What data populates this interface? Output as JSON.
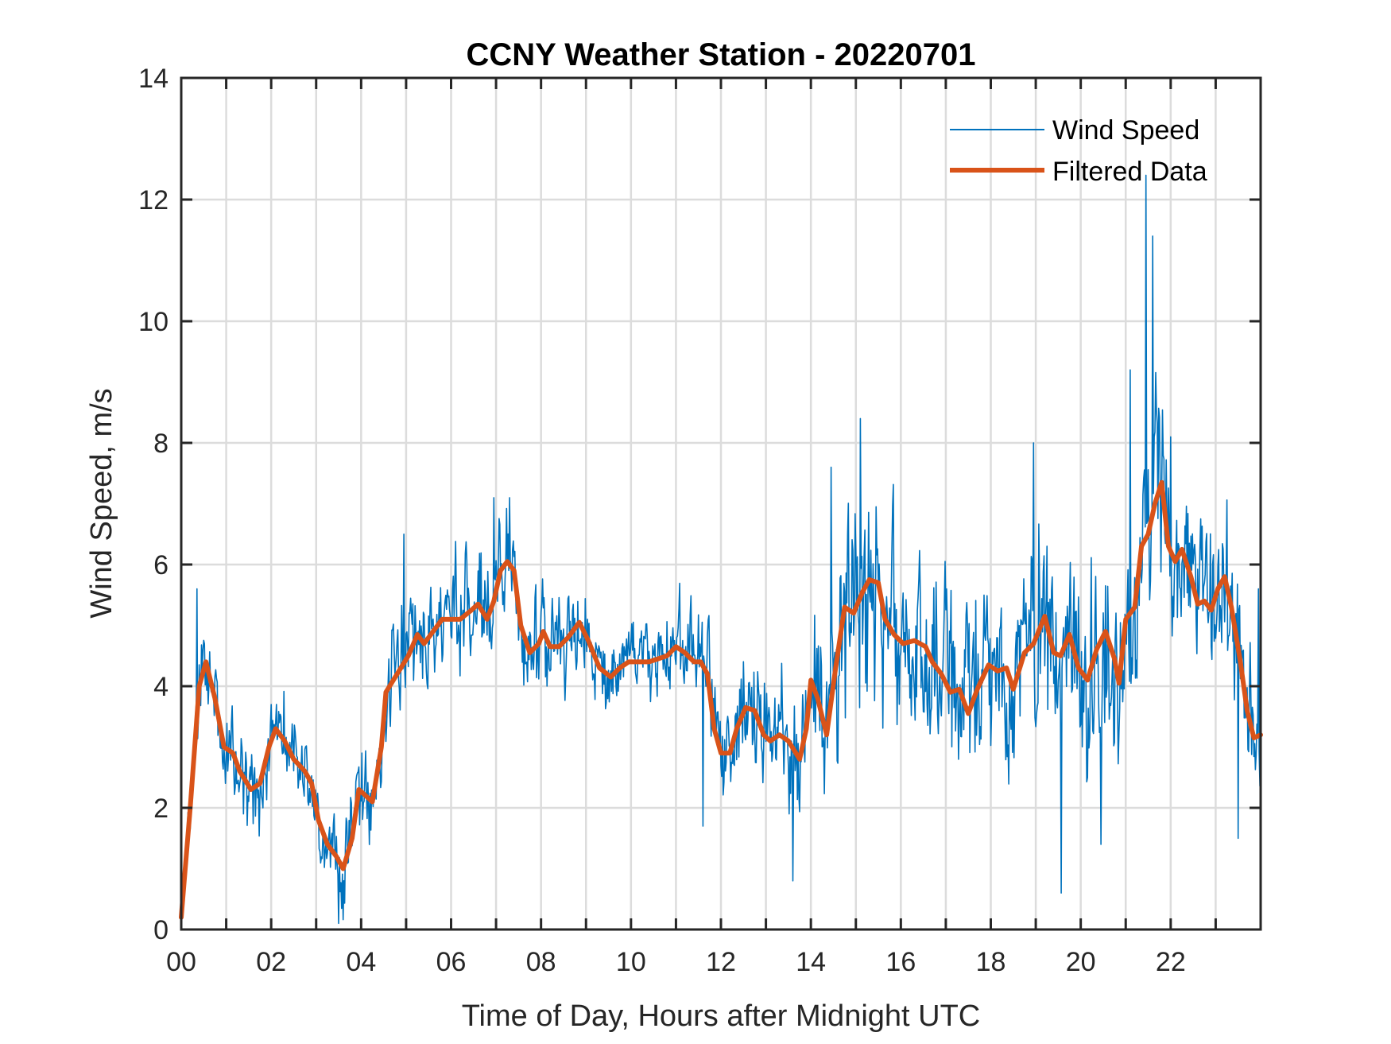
{
  "chart_data": {
    "type": "line",
    "title": "CCNY Weather Station - 20220701",
    "xlabel": "Time of Day, Hours after Midnight UTC",
    "ylabel": "Wind Speed, m/s",
    "xlim": [
      0,
      24
    ],
    "ylim": [
      0,
      14
    ],
    "x_ticks": [
      0,
      2,
      4,
      6,
      8,
      10,
      12,
      14,
      16,
      18,
      20,
      22
    ],
    "x_tick_labels": [
      "00",
      "02",
      "04",
      "06",
      "08",
      "10",
      "12",
      "14",
      "16",
      "18",
      "20",
      "22"
    ],
    "x_minor_grid_step_hours": 1,
    "y_ticks": [
      0,
      2,
      4,
      6,
      8,
      10,
      12,
      14
    ],
    "y_tick_labels": [
      "0",
      "2",
      "4",
      "6",
      "8",
      "10",
      "12",
      "14"
    ],
    "grid": true,
    "box": true,
    "legend": {
      "placement": "top-right",
      "entries": [
        "Wind Speed",
        "Filtered Data"
      ]
    },
    "series": [
      {
        "name": "Wind Speed",
        "color": "#0072BD",
        "kind": "raw",
        "sample_interval_minutes": 1,
        "description": "Raw 1-minute wind speed; noisy around the filtered trend. Envelope given as [hour, noise amplitude m/s].",
        "noise_envelope": [
          [
            0,
            1.3
          ],
          [
            1,
            1.1
          ],
          [
            2,
            0.9
          ],
          [
            3,
            0.9
          ],
          [
            4,
            1.1
          ],
          [
            5,
            1.1
          ],
          [
            6,
            1.2
          ],
          [
            7,
            1.3
          ],
          [
            8,
            1.1
          ],
          [
            9,
            0.9
          ],
          [
            10,
            0.8
          ],
          [
            11,
            0.9
          ],
          [
            12,
            1.1
          ],
          [
            13,
            1.1
          ],
          [
            14,
            1.3
          ],
          [
            14.4,
            2.2
          ],
          [
            16,
            2.2
          ],
          [
            18,
            2.2
          ],
          [
            20,
            2.2
          ],
          [
            21,
            2.3
          ],
          [
            22,
            2.0
          ],
          [
            23,
            1.7
          ],
          [
            24,
            1.7
          ]
        ],
        "notable_points": [
          {
            "x": 0.35,
            "y": 5.6
          },
          {
            "x": 2.0,
            "y": 3.7
          },
          {
            "x": 3.5,
            "y": 0.1
          },
          {
            "x": 4.95,
            "y": 6.5
          },
          {
            "x": 6.95,
            "y": 7.1
          },
          {
            "x": 7.3,
            "y": 7.1
          },
          {
            "x": 11.6,
            "y": 1.7
          },
          {
            "x": 13.6,
            "y": 0.8
          },
          {
            "x": 14.45,
            "y": 7.6
          },
          {
            "x": 15.1,
            "y": 8.4
          },
          {
            "x": 18.95,
            "y": 8.0
          },
          {
            "x": 19.56,
            "y": 0.6
          },
          {
            "x": 20.45,
            "y": 1.4
          },
          {
            "x": 21.1,
            "y": 9.2
          },
          {
            "x": 21.45,
            "y": 12.4
          },
          {
            "x": 21.6,
            "y": 11.4
          },
          {
            "x": 22.0,
            "y": 8.1
          },
          {
            "x": 23.5,
            "y": 1.5
          },
          {
            "x": 23.95,
            "y": 5.6
          }
        ]
      },
      {
        "name": "Filtered Data",
        "color": "#D95319",
        "kind": "smoothed",
        "points": [
          [
            0.0,
            0.2
          ],
          [
            0.2,
            2.0
          ],
          [
            0.4,
            4.0
          ],
          [
            0.55,
            4.4
          ],
          [
            0.75,
            3.8
          ],
          [
            0.95,
            3.0
          ],
          [
            1.15,
            2.9
          ],
          [
            1.3,
            2.6
          ],
          [
            1.55,
            2.3
          ],
          [
            1.75,
            2.4
          ],
          [
            1.95,
            3.0
          ],
          [
            2.1,
            3.3
          ],
          [
            2.3,
            3.1
          ],
          [
            2.5,
            2.8
          ],
          [
            2.75,
            2.6
          ],
          [
            2.9,
            2.4
          ],
          [
            3.05,
            1.8
          ],
          [
            3.25,
            1.4
          ],
          [
            3.45,
            1.2
          ],
          [
            3.6,
            1.0
          ],
          [
            3.8,
            1.5
          ],
          [
            3.95,
            2.3
          ],
          [
            4.1,
            2.2
          ],
          [
            4.25,
            2.1
          ],
          [
            4.45,
            3.0
          ],
          [
            4.55,
            3.9
          ],
          [
            4.8,
            4.2
          ],
          [
            5.05,
            4.5
          ],
          [
            5.25,
            4.85
          ],
          [
            5.4,
            4.7
          ],
          [
            5.6,
            4.9
          ],
          [
            5.8,
            5.1
          ],
          [
            6.0,
            5.1
          ],
          [
            6.2,
            5.1
          ],
          [
            6.45,
            5.25
          ],
          [
            6.6,
            5.35
          ],
          [
            6.8,
            5.1
          ],
          [
            6.95,
            5.4
          ],
          [
            7.1,
            5.9
          ],
          [
            7.25,
            6.05
          ],
          [
            7.4,
            5.9
          ],
          [
            7.55,
            5.0
          ],
          [
            7.75,
            4.55
          ],
          [
            7.95,
            4.7
          ],
          [
            8.05,
            4.9
          ],
          [
            8.2,
            4.65
          ],
          [
            8.4,
            4.65
          ],
          [
            8.6,
            4.8
          ],
          [
            8.85,
            5.05
          ],
          [
            9.05,
            4.75
          ],
          [
            9.3,
            4.3
          ],
          [
            9.55,
            4.15
          ],
          [
            9.75,
            4.3
          ],
          [
            9.95,
            4.4
          ],
          [
            10.2,
            4.4
          ],
          [
            10.4,
            4.4
          ],
          [
            10.6,
            4.45
          ],
          [
            10.8,
            4.5
          ],
          [
            11.0,
            4.65
          ],
          [
            11.2,
            4.55
          ],
          [
            11.4,
            4.4
          ],
          [
            11.55,
            4.4
          ],
          [
            11.7,
            4.2
          ],
          [
            11.85,
            3.3
          ],
          [
            12.0,
            2.9
          ],
          [
            12.2,
            2.9
          ],
          [
            12.35,
            3.3
          ],
          [
            12.55,
            3.65
          ],
          [
            12.75,
            3.6
          ],
          [
            12.95,
            3.2
          ],
          [
            13.1,
            3.1
          ],
          [
            13.3,
            3.2
          ],
          [
            13.5,
            3.1
          ],
          [
            13.75,
            2.8
          ],
          [
            13.9,
            3.3
          ],
          [
            14.0,
            4.1
          ],
          [
            14.15,
            3.8
          ],
          [
            14.35,
            3.2
          ],
          [
            14.55,
            4.3
          ],
          [
            14.75,
            5.3
          ],
          [
            14.95,
            5.2
          ],
          [
            15.15,
            5.55
          ],
          [
            15.3,
            5.75
          ],
          [
            15.5,
            5.7
          ],
          [
            15.65,
            5.1
          ],
          [
            15.85,
            4.85
          ],
          [
            16.05,
            4.7
          ],
          [
            16.3,
            4.75
          ],
          [
            16.55,
            4.65
          ],
          [
            16.7,
            4.4
          ],
          [
            16.9,
            4.2
          ],
          [
            17.1,
            3.9
          ],
          [
            17.3,
            3.95
          ],
          [
            17.5,
            3.55
          ],
          [
            17.7,
            3.95
          ],
          [
            17.95,
            4.35
          ],
          [
            18.15,
            4.25
          ],
          [
            18.35,
            4.3
          ],
          [
            18.5,
            3.95
          ],
          [
            18.75,
            4.55
          ],
          [
            18.95,
            4.7
          ],
          [
            19.2,
            5.15
          ],
          [
            19.4,
            4.55
          ],
          [
            19.55,
            4.5
          ],
          [
            19.75,
            4.85
          ],
          [
            19.95,
            4.3
          ],
          [
            20.15,
            4.1
          ],
          [
            20.35,
            4.6
          ],
          [
            20.55,
            4.9
          ],
          [
            20.75,
            4.45
          ],
          [
            20.85,
            4.05
          ],
          [
            21.0,
            5.1
          ],
          [
            21.2,
            5.3
          ],
          [
            21.35,
            6.3
          ],
          [
            21.5,
            6.5
          ],
          [
            21.65,
            7.0
          ],
          [
            21.8,
            7.35
          ],
          [
            21.95,
            6.3
          ],
          [
            22.1,
            6.05
          ],
          [
            22.25,
            6.25
          ],
          [
            22.45,
            5.8
          ],
          [
            22.6,
            5.35
          ],
          [
            22.75,
            5.4
          ],
          [
            22.9,
            5.25
          ],
          [
            23.05,
            5.6
          ],
          [
            23.2,
            5.8
          ],
          [
            23.35,
            5.3
          ],
          [
            23.55,
            4.4
          ],
          [
            23.7,
            3.6
          ],
          [
            23.85,
            3.15
          ],
          [
            24.0,
            3.2
          ]
        ]
      }
    ]
  }
}
